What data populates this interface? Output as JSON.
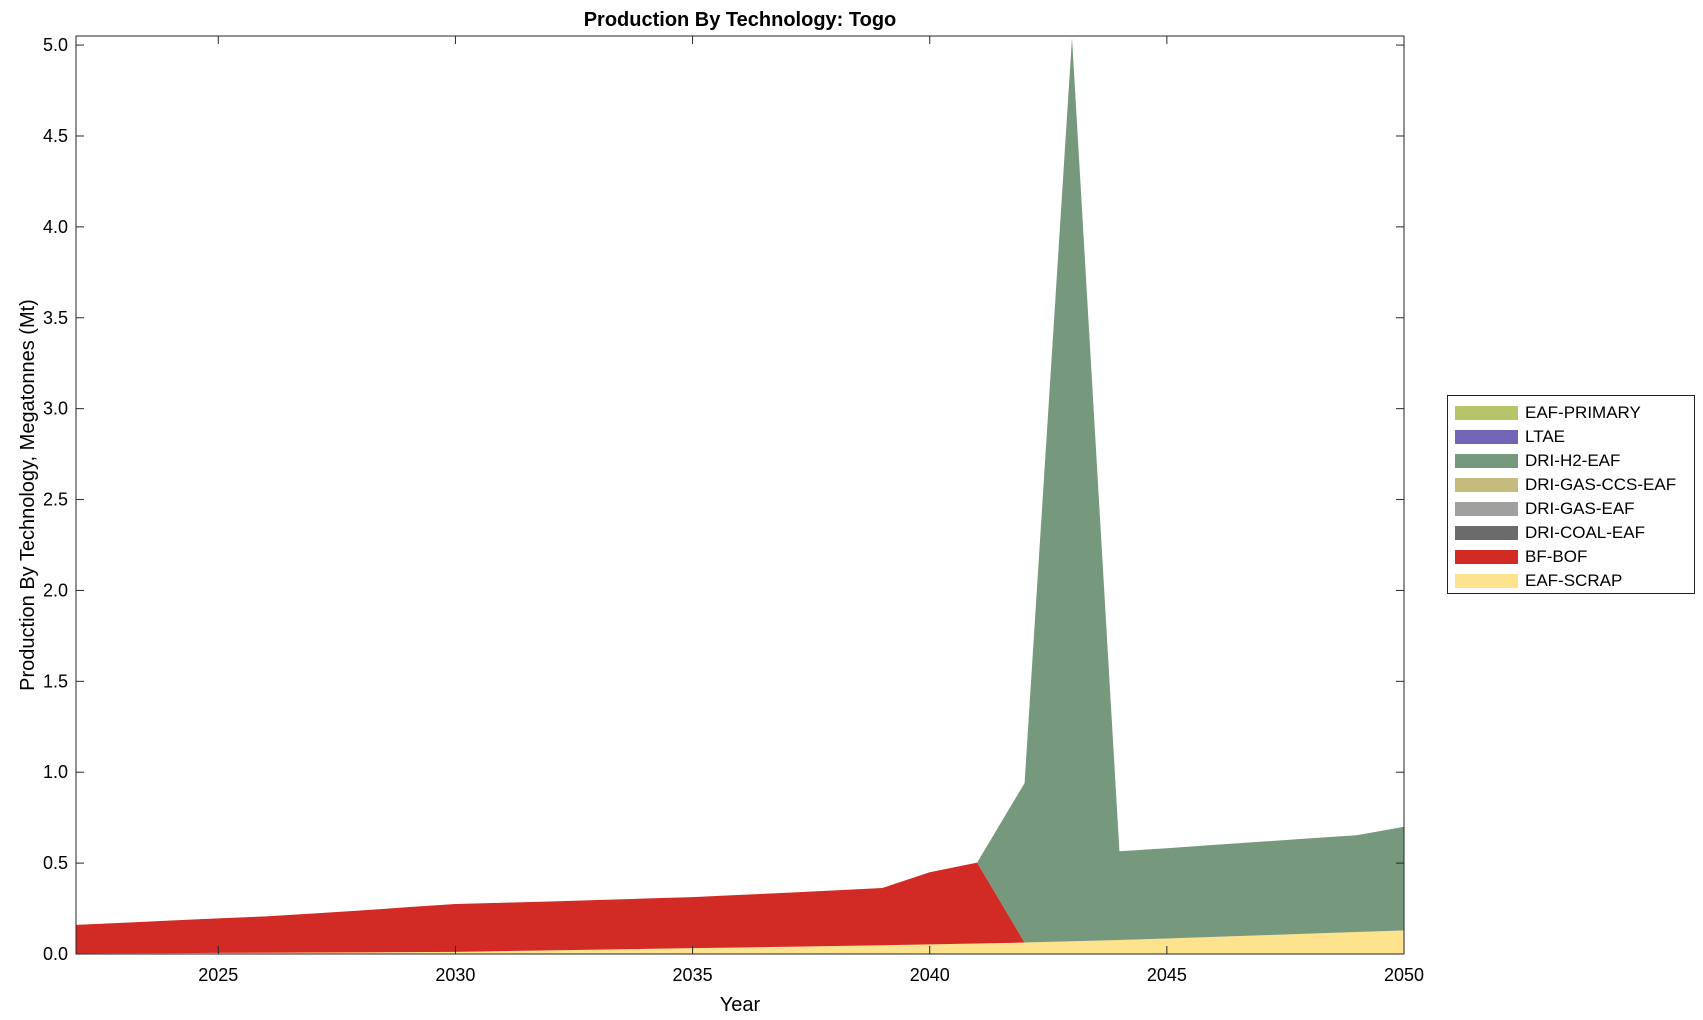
{
  "chart_data": {
    "type": "area",
    "stacked": true,
    "title": "Production By Technology: Togo",
    "xlabel": "Year",
    "ylabel": "Production By Technology, Megatonnes (Mt)",
    "xlim": [
      2022,
      2050
    ],
    "ylim": [
      0,
      5.05
    ],
    "xticks": [
      2025,
      2030,
      2035,
      2040,
      2045,
      2050
    ],
    "yticks": [
      0,
      0.5,
      1,
      1.5,
      2,
      2.5,
      3,
      3.5,
      4,
      4.5,
      5
    ],
    "ytick_labels": [
      "0.0",
      "0.5",
      "1.0",
      "1.5",
      "2.0",
      "2.5",
      "3.0",
      "3.5",
      "4.0",
      "4.5",
      "5.0"
    ],
    "grid": false,
    "legend_position": "right",
    "x": [
      2022,
      2023,
      2024,
      2025,
      2026,
      2027,
      2028,
      2029,
      2030,
      2031,
      2032,
      2033,
      2034,
      2035,
      2036,
      2037,
      2038,
      2039,
      2040,
      2041,
      2042,
      2043,
      2044,
      2045,
      2046,
      2047,
      2048,
      2049,
      2050
    ],
    "series": [
      {
        "name": "EAF-SCRAP",
        "color": "#fde38e",
        "values": [
          0.003,
          0.004,
          0.005,
          0.006,
          0.007,
          0.008,
          0.009,
          0.01,
          0.012,
          0.016,
          0.02,
          0.024,
          0.028,
          0.032,
          0.036,
          0.04,
          0.044,
          0.048,
          0.053,
          0.058,
          0.063,
          0.07,
          0.077,
          0.085,
          0.094,
          0.103,
          0.112,
          0.121,
          0.13
        ]
      },
      {
        "name": "BF-BOF",
        "color": "#d22b25",
        "values": [
          0.157,
          0.168,
          0.179,
          0.19,
          0.2,
          0.215,
          0.23,
          0.248,
          0.263,
          0.266,
          0.269,
          0.273,
          0.277,
          0.281,
          0.289,
          0.297,
          0.306,
          0.315,
          0.397,
          0.445,
          0,
          0,
          0,
          0,
          0,
          0,
          0,
          0,
          0
        ]
      },
      {
        "name": "DRI-COAL-EAF",
        "color": "#6b6b6b",
        "values": [
          0,
          0,
          0,
          0,
          0,
          0,
          0,
          0,
          0,
          0,
          0,
          0,
          0,
          0,
          0,
          0,
          0,
          0,
          0,
          0,
          0,
          0,
          0,
          0,
          0,
          0,
          0,
          0,
          0
        ]
      },
      {
        "name": "DRI-GAS-EAF",
        "color": "#a0a09f",
        "values": [
          0,
          0,
          0,
          0,
          0,
          0,
          0,
          0,
          0,
          0,
          0,
          0,
          0,
          0,
          0,
          0,
          0,
          0,
          0,
          0,
          0,
          0,
          0,
          0,
          0,
          0,
          0,
          0,
          0
        ]
      },
      {
        "name": "DRI-GAS-CCS-EAF",
        "color": "#c4bb7c",
        "values": [
          0,
          0,
          0,
          0,
          0,
          0,
          0,
          0,
          0,
          0,
          0,
          0,
          0,
          0,
          0,
          0,
          0,
          0,
          0,
          0,
          0,
          0,
          0,
          0,
          0,
          0,
          0,
          0,
          0
        ]
      },
      {
        "name": "DRI-H2-EAF",
        "color": "#76987d",
        "values": [
          0,
          0,
          0,
          0,
          0,
          0,
          0,
          0,
          0,
          0,
          0,
          0,
          0,
          0,
          0,
          0,
          0,
          0,
          0,
          0,
          0.877,
          4.97,
          0.488,
          0.497,
          0.506,
          0.515,
          0.524,
          0.532,
          0.57
        ]
      },
      {
        "name": "LTAE",
        "color": "#7265b7",
        "values": [
          0,
          0,
          0,
          0,
          0,
          0,
          0,
          0,
          0,
          0,
          0,
          0,
          0,
          0,
          0,
          0,
          0,
          0,
          0,
          0,
          0,
          0,
          0,
          0,
          0,
          0,
          0,
          0,
          0
        ]
      },
      {
        "name": "EAF-PRIMARY",
        "color": "#b7c46a",
        "values": [
          0,
          0,
          0,
          0,
          0,
          0,
          0,
          0,
          0,
          0,
          0,
          0,
          0,
          0,
          0,
          0,
          0,
          0,
          0,
          0,
          0,
          0,
          0,
          0,
          0,
          0,
          0,
          0,
          0
        ]
      }
    ]
  }
}
